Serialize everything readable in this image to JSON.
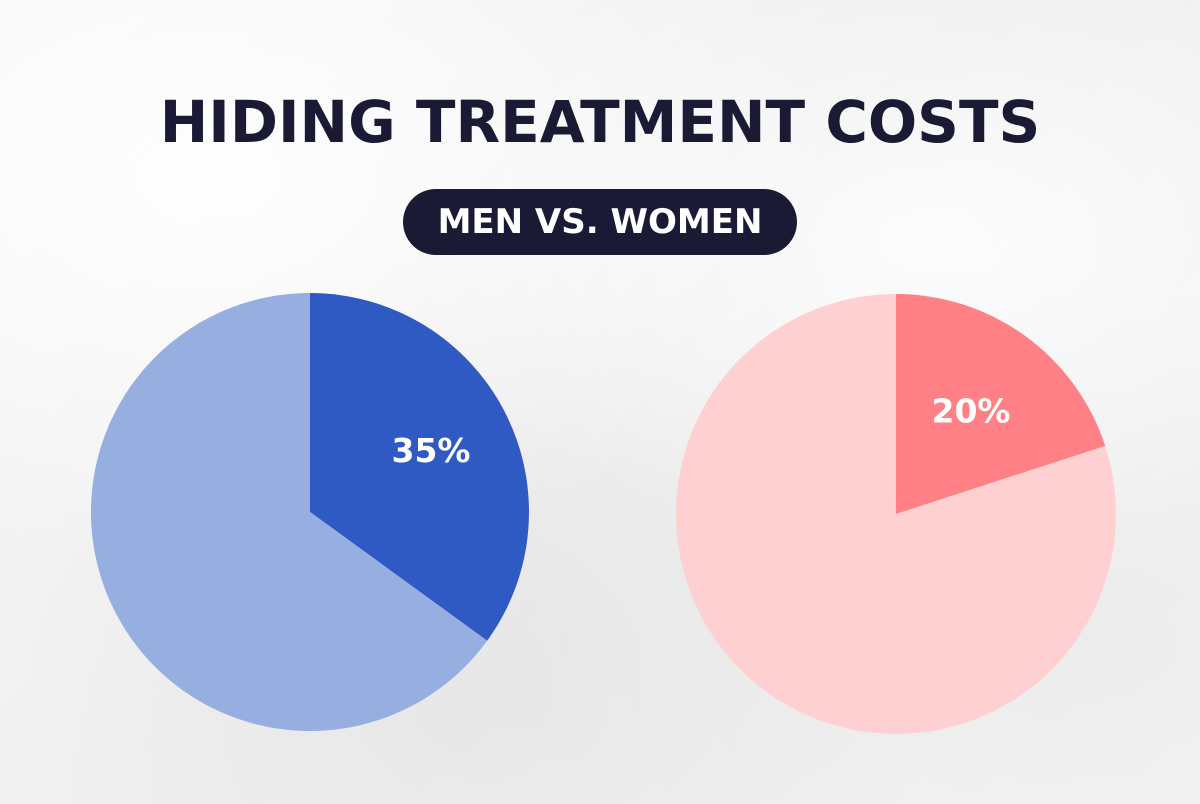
{
  "header": {
    "title": "HIDING TREATMENT COSTS",
    "subtitle": "MEN VS. WOMEN"
  },
  "colors": {
    "title_text": "#1b1a35",
    "pill_background": "#1b1a35",
    "pill_text": "#ffffff",
    "label_text": "#ffffff"
  },
  "chart_data": [
    {
      "type": "pie",
      "title": "",
      "start_angle": "12 o'clock, clockwise",
      "slices": [
        {
          "value": 35,
          "label": "35%",
          "color": "#2f5ac3"
        },
        {
          "value": 65,
          "label": "",
          "color": "#97aee0"
        }
      ]
    },
    {
      "type": "pie",
      "title": "",
      "start_angle": "12 o'clock, clockwise",
      "slices": [
        {
          "value": 20,
          "label": "20%",
          "color": "#ff8186"
        },
        {
          "value": 80,
          "label": "",
          "color": "#ffd0d2"
        }
      ]
    }
  ]
}
